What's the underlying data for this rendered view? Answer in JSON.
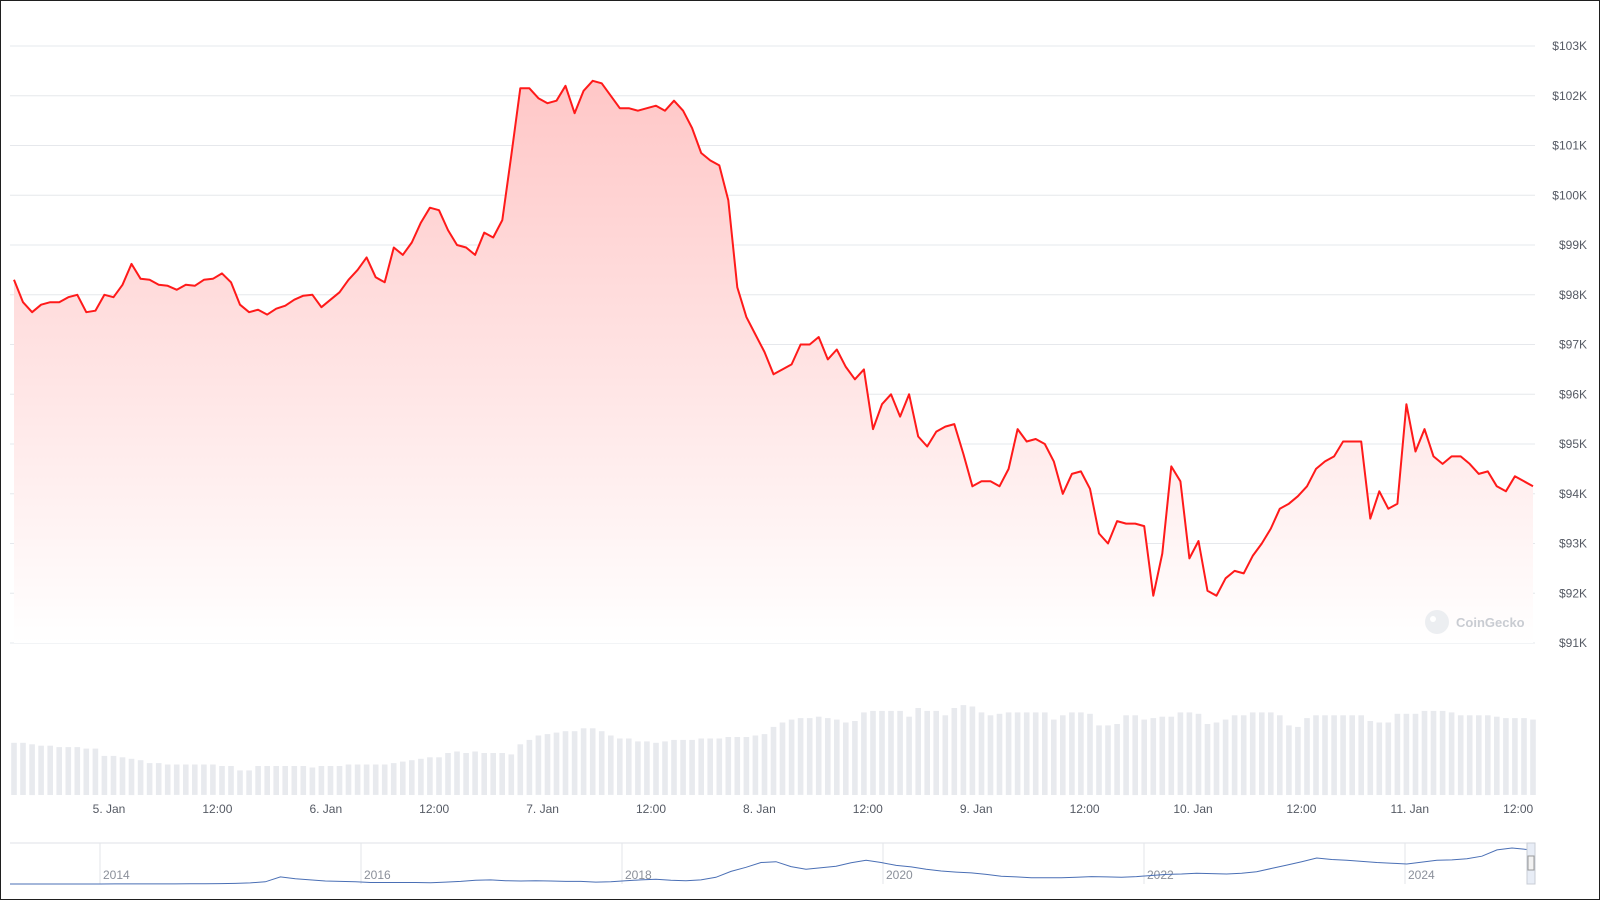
{
  "watermark": "CoinGecko",
  "colors": {
    "price_line": "#ff1a1a",
    "area_top": "#ffc7c7",
    "area_bottom": "#ffffff",
    "volume_bar": "#e8eaee",
    "grid": "#e6e8ec",
    "navigator_line": "#4a6fb5"
  },
  "chart_data": {
    "type": "area",
    "title": "",
    "xlabel": "",
    "ylabel": "",
    "y_unit": "$",
    "ylim": [
      91000,
      103000
    ],
    "grid": true,
    "y_ticks": [
      "$91K",
      "$92K",
      "$93K",
      "$94K",
      "$95K",
      "$96K",
      "$97K",
      "$98K",
      "$99K",
      "$100K",
      "$101K",
      "$102K",
      "$103K"
    ],
    "x_ticks": [
      "5. Jan",
      "12:00",
      "6. Jan",
      "12:00",
      "7. Jan",
      "12:00",
      "8. Jan",
      "12:00",
      "9. Jan",
      "12:00",
      "10. Jan",
      "12:00",
      "11. Jan",
      "12:00"
    ],
    "x_range_days": [
      "2025-01-04T08:00",
      "2025-01-11T14:00"
    ],
    "series": [
      {
        "values": [
          98300,
          97850,
          97650,
          97800,
          97850,
          97850,
          97950,
          98000,
          97650,
          97680,
          98000,
          97950,
          98200,
          98620,
          98320,
          98300,
          98200,
          98180,
          98100,
          98200,
          98180,
          98300,
          98320,
          98430,
          98250,
          97800,
          97650,
          97700,
          97600,
          97720,
          97780,
          97900,
          97980,
          98000,
          97750,
          97900,
          98050,
          98300,
          98500,
          98750,
          98350,
          98250,
          98950,
          98800,
          99050,
          99450,
          99750,
          99700,
          99300,
          99000,
          98950,
          98800,
          99250,
          99150,
          99500,
          100800,
          102150,
          102150,
          101950,
          101850,
          101900,
          102200,
          101650,
          102100,
          102300,
          102250,
          102000,
          101750,
          101750,
          101700,
          101750,
          101800,
          101700,
          101900,
          101700,
          101350,
          100850,
          100700,
          100600,
          99900,
          98150,
          97550,
          97200,
          96850,
          96400,
          96500,
          96600,
          97000,
          97000,
          97150,
          96700,
          96900,
          96550,
          96300,
          96500,
          95300,
          95800,
          96000,
          95550,
          96000,
          95150,
          94950,
          95250,
          95350,
          95400,
          94800,
          94150,
          94250,
          94250,
          94150,
          94500,
          95300,
          95050,
          95100,
          95000,
          94650,
          94000,
          94400,
          94450,
          94100,
          93200,
          93000,
          93450,
          93400,
          93400,
          93350,
          91950,
          92800,
          94550,
          94250,
          92700,
          93050,
          92050,
          91950,
          92300,
          92450,
          92400,
          92750,
          93000,
          93300,
          93700,
          93800,
          93950,
          94150,
          94500,
          94650,
          94750,
          95050,
          95050,
          95050,
          93500,
          94050,
          93700,
          93800,
          95800,
          94850,
          95300,
          94750,
          94600,
          94750,
          94750,
          94600,
          94400,
          94450,
          94150,
          94050,
          94350,
          94250,
          94150
        ]
      }
    ],
    "volume_values": [
      36,
      36,
      35,
      34,
      34,
      33,
      33,
      33,
      32,
      32,
      27,
      27,
      26,
      25,
      24,
      22,
      22,
      21,
      21,
      21,
      21,
      21,
      21,
      20,
      20,
      17,
      17,
      20,
      20,
      20,
      20,
      20,
      20,
      19,
      20,
      20,
      20,
      21,
      21,
      21,
      21,
      21,
      22,
      23,
      24,
      25,
      26,
      26,
      29,
      30,
      29,
      30,
      29,
      29,
      29,
      28,
      35,
      38,
      41,
      42,
      43,
      44,
      44,
      46,
      46,
      44,
      41,
      39,
      39,
      37,
      37,
      36,
      37,
      38,
      38,
      38,
      39,
      39,
      39,
      40,
      40,
      40,
      41,
      42,
      47,
      50,
      52,
      53,
      53,
      54,
      53,
      52,
      50,
      51,
      57,
      58,
      58,
      58,
      58,
      54,
      60,
      58,
      58,
      55,
      60,
      62,
      61,
      57,
      55,
      56,
      57,
      57,
      57,
      57,
      57,
      52,
      55,
      57,
      57,
      56,
      48,
      48,
      49,
      55,
      55,
      52,
      53,
      54,
      54,
      57,
      57,
      56,
      49,
      50,
      52,
      55,
      55,
      57,
      57,
      57,
      55,
      48,
      47,
      53,
      55,
      55,
      55,
      55,
      55,
      55,
      51,
      50,
      50,
      56,
      56,
      56,
      58,
      58,
      58,
      57,
      55,
      55,
      55,
      55,
      54,
      53,
      53,
      53,
      52
    ]
  },
  "navigator": {
    "year_labels": [
      "2014",
      "2016",
      "2018",
      "2020",
      "2022",
      "2024"
    ],
    "values": [
      0.1,
      0.1,
      0.1,
      0.1,
      0.1,
      0.1,
      0.1,
      0.2,
      0.2,
      0.3,
      0.4,
      0.3,
      0.5,
      0.8,
      1,
      1.5,
      3,
      6,
      19,
      14,
      11,
      8,
      7,
      6,
      4,
      4,
      4,
      4,
      3.5,
      5,
      7,
      10,
      11,
      9,
      8,
      9,
      8,
      7,
      7,
      5,
      6,
      9,
      11,
      13,
      10,
      9,
      11,
      18,
      34,
      45,
      58,
      60,
      47,
      40,
      44,
      48,
      57,
      64,
      58,
      50,
      46,
      40,
      35,
      32,
      30,
      26,
      21,
      19,
      17,
      17,
      17,
      18,
      20,
      19,
      18,
      20,
      23,
      26,
      27,
      29,
      28,
      27,
      29,
      33,
      42,
      51,
      60,
      70,
      66,
      64,
      61,
      58,
      56,
      54,
      59,
      64,
      65,
      68,
      75,
      92,
      97,
      93
    ]
  }
}
